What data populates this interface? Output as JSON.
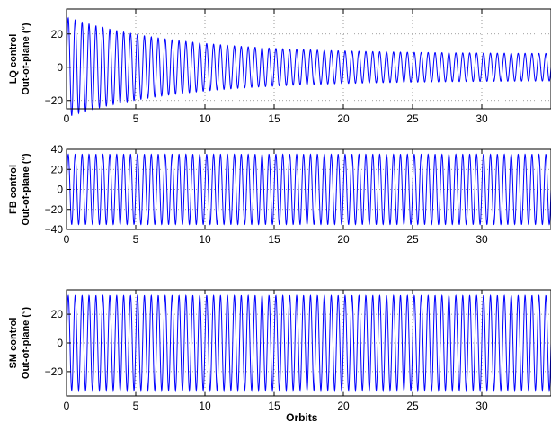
{
  "colors": {
    "line": "#0000ff",
    "axis": "#000000",
    "grid": "#808080",
    "background": "#ffffff"
  },
  "chart_data": [
    {
      "type": "line",
      "ylabel_lines": [
        "LQ control",
        "Out-of-plane (°)"
      ],
      "xlabel": "",
      "xlim": [
        0,
        35
      ],
      "ylim": [
        -25,
        35
      ],
      "xticks": [
        0,
        5,
        10,
        15,
        20,
        25,
        30
      ],
      "yticks": [
        -20,
        0,
        20
      ],
      "grid": true,
      "series": [
        {
          "name": "",
          "period_orbits": 0.5,
          "start_amplitude_deg": 30,
          "end_amplitude_deg": 8,
          "decay_orbits": 8,
          "phase": "sine"
        }
      ]
    },
    {
      "type": "line",
      "ylabel_lines": [
        "FB control",
        "Out-of-plane (°)"
      ],
      "xlabel": "",
      "xlim": [
        0,
        35
      ],
      "ylim": [
        -40,
        40
      ],
      "xticks": [
        0,
        5,
        10,
        15,
        20,
        25,
        30
      ],
      "yticks": [
        -40,
        -20,
        0,
        20,
        40
      ],
      "grid": true,
      "series": [
        {
          "name": "",
          "period_orbits": 0.5,
          "amplitude_deg": 35,
          "phase": "sine"
        }
      ]
    },
    {
      "type": "line",
      "ylabel_lines": [
        "SM control",
        "Out-of-plane (°)"
      ],
      "xlabel": "Orbits",
      "xlim": [
        0,
        35
      ],
      "ylim": [
        -37,
        37
      ],
      "xticks": [
        0,
        5,
        10,
        15,
        20,
        25,
        30
      ],
      "yticks": [
        -20,
        0,
        20
      ],
      "grid": true,
      "series": [
        {
          "name": "",
          "period_orbits": 0.5,
          "amplitude_deg": 33,
          "phase": "sine"
        }
      ]
    }
  ]
}
